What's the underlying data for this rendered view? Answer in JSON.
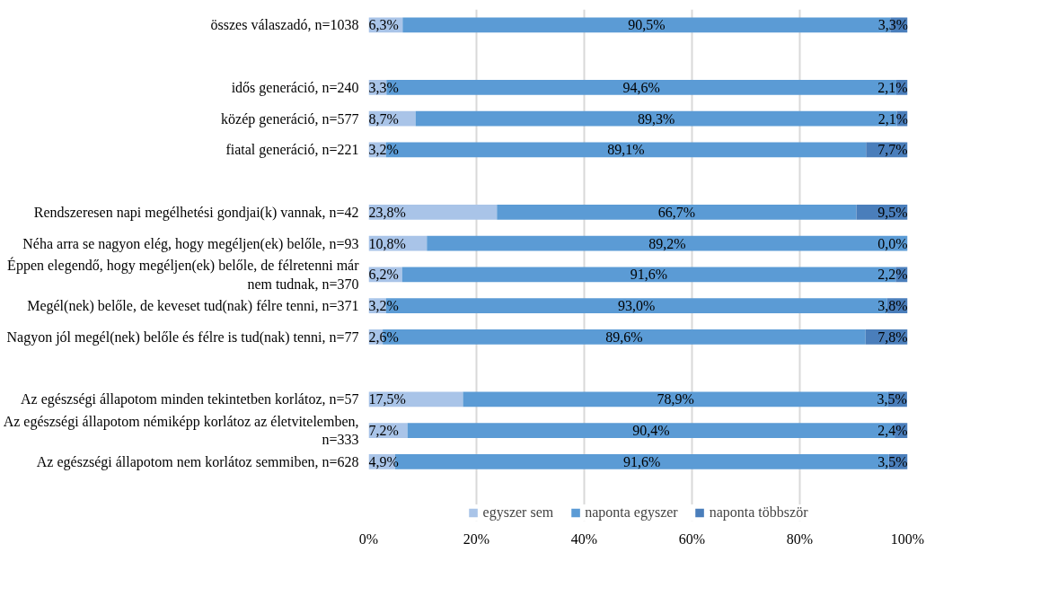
{
  "chart_data": {
    "type": "bar",
    "orientation": "horizontal",
    "stacked": true,
    "categories": [
      "összes válaszadó, n=1038",
      null,
      "idős generáció, n=240",
      "közép generáció, n=577",
      "fiatal generáció, n=221",
      null,
      "Rendszeresen napi megélhetési gondjai(k) vannak, n=42",
      "Néha arra se nagyon elég, hogy megéljen(ek) belőle, n=93",
      "Éppen elegendő, hogy megéljen(ek) belőle, de félretenni már\nnem tudnak, n=370",
      "Megél(nek) belőle, de keveset tud(nak) félre tenni, n=371",
      "Nagyon jól megél(nek) belőle és félre is tud(nak) tenni, n=77",
      null,
      "Az egészségi állapotom minden tekintetben korlátoz, n=57",
      "Az egészségi állapotom némiképp korlátoz az életvitelemben,\nn=333",
      "Az egészségi állapotom nem korlátoz semmiben, n=628"
    ],
    "series": [
      {
        "name": "egyszer sem",
        "color": "#a9c4e8",
        "values": [
          6.3,
          null,
          3.3,
          8.7,
          3.2,
          null,
          23.8,
          10.8,
          6.2,
          3.2,
          2.6,
          null,
          17.5,
          7.2,
          4.9
        ],
        "value_labels": [
          "6,3%",
          null,
          "3,3%",
          "8,7%",
          "3,2%",
          null,
          "23,8%",
          "10,8%",
          "6,2%",
          "3,2%",
          "2,6%",
          null,
          "17,5%",
          "7,2%",
          "4,9%"
        ]
      },
      {
        "name": "naponta egyszer",
        "color": "#5b9bd5",
        "values": [
          90.5,
          null,
          94.6,
          89.3,
          89.1,
          null,
          66.7,
          89.2,
          91.6,
          93.0,
          89.6,
          null,
          78.9,
          90.4,
          91.6
        ],
        "value_labels": [
          "90,5%",
          null,
          "94,6%",
          "89,3%",
          "89,1%",
          null,
          "66,7%",
          "89,2%",
          "91,6%",
          "93,0%",
          "89,6%",
          null,
          "78,9%",
          "90,4%",
          "91,6%"
        ]
      },
      {
        "name": "naponta többször",
        "color": "#4a7ebb",
        "values": [
          3.3,
          null,
          2.1,
          2.1,
          7.7,
          null,
          9.5,
          0.0,
          2.2,
          3.8,
          7.8,
          null,
          3.5,
          2.4,
          3.5
        ],
        "value_labels": [
          "3,3%",
          null,
          "2,1%",
          "2,1%",
          "7,7%",
          null,
          "9,5%",
          "0,0%",
          "2,2%",
          "3,8%",
          "7,8%",
          null,
          "3,5%",
          "2,4%",
          "3,5%"
        ]
      }
    ],
    "xlim": [
      0,
      100
    ],
    "xticks": [
      {
        "value": 0,
        "label": "0%"
      },
      {
        "value": 20,
        "label": "20%"
      },
      {
        "value": 40,
        "label": "40%"
      },
      {
        "value": 60,
        "label": "60%"
      },
      {
        "value": 80,
        "label": "80%"
      },
      {
        "value": 100,
        "label": "100%"
      }
    ],
    "grid": "x",
    "legend": "bottom"
  }
}
